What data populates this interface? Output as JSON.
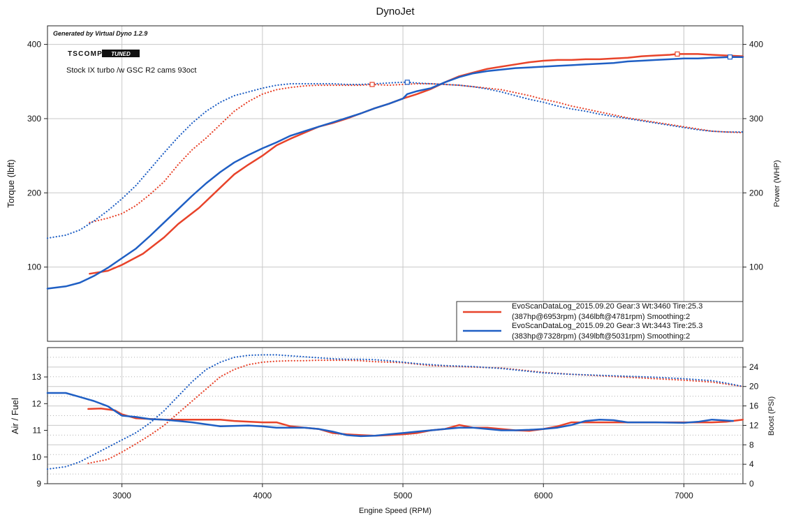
{
  "colors": {
    "red": "#e8432a",
    "blue": "#1f5fc4",
    "grid": "#c8c8c8",
    "minor_grid": "#b0b0b0"
  },
  "chart_data": {
    "title": "DynoJet",
    "generated_by": "Generated by Virtual Dyno 1.2.9",
    "logo": {
      "word": "TSCOMP",
      "badge": "TUNED"
    },
    "annotation": "Stock IX turbo /w GSC R2 cams 93oct",
    "xlabel": "Engine Speed (RPM)",
    "xlim": [
      2470,
      7420
    ],
    "xticks": [
      3000,
      4000,
      5000,
      6000,
      7000
    ],
    "top": {
      "type": "line",
      "ylabel_left": "Torque (lbft)",
      "ylabel_right": "Power (WHP)",
      "ylim": [
        0,
        425
      ],
      "yticks": [
        100,
        200,
        300,
        400
      ],
      "series": [
        {
          "name": "Power",
          "run": "red",
          "style": "solid",
          "x": [
            2770,
            2900,
            3000,
            3150,
            3300,
            3400,
            3550,
            3700,
            3800,
            3900,
            4000,
            4100,
            4200,
            4300,
            4400,
            4500,
            4600,
            4700,
            4800,
            4900,
            5000,
            5100,
            5200,
            5300,
            5400,
            5500,
            5600,
            5700,
            5800,
            5900,
            6000,
            6100,
            6200,
            6300,
            6400,
            6500,
            6600,
            6700,
            6800,
            6900,
            6953,
            7000,
            7100,
            7200,
            7300,
            7420
          ],
          "y": [
            91,
            95,
            103,
            118,
            140,
            158,
            180,
            207,
            225,
            238,
            250,
            264,
            273,
            281,
            289,
            294,
            300,
            307,
            314,
            320,
            327,
            333,
            340,
            349,
            357,
            362,
            367,
            370,
            373,
            376,
            378,
            379,
            379,
            380,
            380,
            381,
            382,
            384,
            385,
            386,
            387,
            387,
            387,
            386,
            385,
            384
          ]
        },
        {
          "name": "Torque",
          "run": "red",
          "style": "dotted",
          "x": [
            2770,
            2900,
            3000,
            3100,
            3200,
            3300,
            3400,
            3500,
            3600,
            3700,
            3800,
            3900,
            4000,
            4100,
            4200,
            4300,
            4400,
            4500,
            4600,
            4700,
            4781,
            4900,
            5000,
            5100,
            5200,
            5300,
            5400,
            5500,
            5600,
            5700,
            5800,
            5900,
            6000,
            6100,
            6200,
            6300,
            6400,
            6500,
            6600,
            6700,
            6800,
            6900,
            7000,
            7100,
            7200,
            7300,
            7420
          ],
          "y": [
            160,
            166,
            172,
            183,
            198,
            215,
            238,
            258,
            274,
            292,
            310,
            323,
            333,
            339,
            342,
            344,
            345,
            345,
            345,
            345,
            346,
            345,
            346,
            347,
            347,
            346,
            345,
            343,
            341,
            339,
            335,
            331,
            326,
            322,
            317,
            313,
            309,
            305,
            301,
            298,
            295,
            292,
            289,
            286,
            283,
            282,
            281
          ]
        },
        {
          "name": "Power",
          "run": "blue",
          "style": "solid",
          "x": [
            2470,
            2600,
            2700,
            2800,
            2900,
            3000,
            3100,
            3200,
            3300,
            3400,
            3500,
            3600,
            3700,
            3800,
            3900,
            4000,
            4100,
            4200,
            4300,
            4400,
            4500,
            4600,
            4700,
            4800,
            4900,
            5000,
            5031,
            5100,
            5200,
            5300,
            5400,
            5500,
            5600,
            5700,
            5800,
            5900,
            6000,
            6100,
            6200,
            6300,
            6400,
            6500,
            6600,
            6700,
            6800,
            6900,
            7000,
            7100,
            7200,
            7328,
            7420
          ],
          "y": [
            71,
            74,
            79,
            88,
            99,
            112,
            125,
            142,
            160,
            178,
            196,
            213,
            228,
            241,
            251,
            260,
            268,
            277,
            283,
            289,
            295,
            301,
            307,
            314,
            320,
            327,
            333,
            337,
            341,
            349,
            356,
            361,
            364,
            366,
            368,
            369,
            370,
            371,
            372,
            373,
            374,
            375,
            377,
            378,
            379,
            380,
            381,
            381,
            382,
            383,
            383
          ]
        },
        {
          "name": "Torque",
          "run": "blue",
          "style": "dotted",
          "x": [
            2470,
            2600,
            2700,
            2800,
            2900,
            3000,
            3100,
            3200,
            3300,
            3400,
            3500,
            3600,
            3700,
            3800,
            3900,
            4000,
            4100,
            4200,
            4300,
            4400,
            4500,
            4600,
            4700,
            4800,
            4900,
            5000,
            5031,
            5100,
            5200,
            5300,
            5400,
            5500,
            5600,
            5700,
            5800,
            5900,
            6000,
            6100,
            6200,
            6300,
            6400,
            6500,
            6600,
            6700,
            6800,
            6900,
            7000,
            7100,
            7200,
            7300,
            7420
          ],
          "y": [
            139,
            143,
            150,
            162,
            176,
            192,
            210,
            232,
            254,
            275,
            294,
            310,
            322,
            331,
            336,
            341,
            345,
            347,
            347,
            347,
            347,
            346,
            346,
            347,
            348,
            349,
            349,
            348,
            347,
            346,
            345,
            343,
            340,
            336,
            331,
            326,
            322,
            317,
            313,
            310,
            306,
            303,
            300,
            297,
            294,
            291,
            288,
            285,
            283,
            282,
            282
          ]
        }
      ],
      "markers": [
        {
          "run": "red",
          "x": 6953,
          "y": 387
        },
        {
          "run": "red",
          "x": 4781,
          "y": 346
        },
        {
          "run": "blue",
          "x": 7328,
          "y": 383
        },
        {
          "run": "blue",
          "x": 5031,
          "y": 349
        }
      ],
      "legend": {
        "position": "bottom-right",
        "entries": [
          {
            "run": "red",
            "line1": "EvoScanDataLog_2015.09.20 Gear:3 Wt:3460 Tire:25.3",
            "line2": "(387hp@6953rpm) (346lbft@4781rpm) Smoothing:2"
          },
          {
            "run": "blue",
            "line1": "EvoScanDataLog_2015.09.20 Gear:3 Wt:3443 Tire:25.3",
            "line2": "(383hp@7328rpm) (349lbft@5031rpm) Smoothing:2"
          }
        ]
      }
    },
    "bottom": {
      "type": "line",
      "ylabel_left": "Air / Fuel",
      "ylabel_right": "Boost (PSI)",
      "ylim_left": [
        9,
        14.1
      ],
      "yticks_left": [
        9,
        10,
        11,
        12,
        13
      ],
      "ylim_right": [
        0,
        28
      ],
      "yticks_right": [
        0,
        4,
        8,
        12,
        16,
        20,
        24
      ],
      "series": [
        {
          "name": "Air/Fuel",
          "run": "red",
          "style": "solid",
          "axis": "left",
          "x": [
            2760,
            2850,
            2950,
            3000,
            3100,
            3300,
            3500,
            3700,
            3800,
            4000,
            4100,
            4200,
            4300,
            4400,
            4500,
            4600,
            4700,
            4800,
            4900,
            5000,
            5100,
            5200,
            5300,
            5400,
            5500,
            5600,
            5700,
            5800,
            5900,
            6000,
            6100,
            6200,
            6400,
            6600,
            6800,
            7000,
            7200,
            7300,
            7420
          ],
          "y": [
            11.8,
            11.82,
            11.75,
            11.6,
            11.45,
            11.4,
            11.4,
            11.4,
            11.35,
            11.3,
            11.3,
            11.15,
            11.1,
            11.05,
            10.9,
            10.85,
            10.82,
            10.8,
            10.82,
            10.85,
            10.9,
            11.0,
            11.05,
            11.2,
            11.1,
            11.1,
            11.05,
            11.0,
            10.98,
            11.05,
            11.15,
            11.3,
            11.3,
            11.3,
            11.3,
            11.3,
            11.3,
            11.32,
            11.4
          ]
        },
        {
          "name": "Boost",
          "run": "red",
          "style": "dotted",
          "axis": "right",
          "x": [
            2760,
            2900,
            3000,
            3100,
            3200,
            3300,
            3400,
            3500,
            3600,
            3700,
            3800,
            3900,
            4000,
            4100,
            4200,
            4300,
            4400,
            4500,
            4600,
            4700,
            4800,
            4900,
            5000,
            5100,
            5200,
            5300,
            5400,
            5500,
            5600,
            5700,
            5800,
            5900,
            6000,
            6200,
            6400,
            6600,
            6800,
            7000,
            7200,
            7300,
            7420
          ],
          "y": [
            4.2,
            5,
            6.5,
            8.2,
            10,
            12,
            14.5,
            17,
            19.5,
            22,
            23.5,
            24.5,
            25,
            25.2,
            25.3,
            25.3,
            25.4,
            25.4,
            25.4,
            25.3,
            25.1,
            25,
            24.9,
            24.6,
            24.3,
            24.2,
            24.1,
            24,
            23.9,
            23.8,
            23.5,
            23.2,
            22.9,
            22.5,
            22.2,
            21.9,
            21.6,
            21.3,
            20.9,
            20.5,
            20
          ]
        },
        {
          "name": "Air/Fuel",
          "run": "blue",
          "style": "solid",
          "axis": "left",
          "x": [
            2470,
            2600,
            2700,
            2800,
            2900,
            3000,
            3100,
            3200,
            3300,
            3500,
            3700,
            3900,
            4000,
            4100,
            4200,
            4300,
            4400,
            4500,
            4600,
            4700,
            4800,
            4900,
            5000,
            5100,
            5200,
            5300,
            5400,
            5500,
            5600,
            5700,
            5800,
            5900,
            6000,
            6100,
            6200,
            6300,
            6400,
            6500,
            6600,
            6800,
            7000,
            7100,
            7200,
            7350
          ],
          "y": [
            12.4,
            12.4,
            12.25,
            12.1,
            11.9,
            11.55,
            11.5,
            11.42,
            11.4,
            11.3,
            11.15,
            11.18,
            11.15,
            11.1,
            11.1,
            11.1,
            11.05,
            10.95,
            10.82,
            10.78,
            10.8,
            10.85,
            10.9,
            10.95,
            11.0,
            11.05,
            11.1,
            11.1,
            11.05,
            11.0,
            11.0,
            11.02,
            11.05,
            11.1,
            11.2,
            11.35,
            11.4,
            11.38,
            11.3,
            11.3,
            11.28,
            11.32,
            11.4,
            11.35
          ]
        },
        {
          "name": "Boost",
          "run": "blue",
          "style": "dotted",
          "axis": "right",
          "x": [
            2470,
            2600,
            2700,
            2800,
            2900,
            3000,
            3100,
            3200,
            3300,
            3400,
            3500,
            3600,
            3700,
            3800,
            3900,
            4000,
            4100,
            4200,
            4300,
            4400,
            4500,
            4600,
            4700,
            4800,
            4900,
            5000,
            5100,
            5200,
            5300,
            5400,
            5500,
            5600,
            5700,
            5800,
            5900,
            6000,
            6200,
            6400,
            6600,
            6800,
            7000,
            7200,
            7300,
            7420
          ],
          "y": [
            3,
            3.5,
            4.5,
            6,
            7.5,
            9,
            10.5,
            12.5,
            15,
            18,
            21,
            23.5,
            25,
            26,
            26.4,
            26.5,
            26.5,
            26.3,
            26.1,
            25.9,
            25.7,
            25.6,
            25.6,
            25.5,
            25.3,
            25,
            24.7,
            24.5,
            24.3,
            24.2,
            24.1,
            23.9,
            23.7,
            23.4,
            23.1,
            22.8,
            22.5,
            22.3,
            22.1,
            21.9,
            21.6,
            21.2,
            20.7,
            20
          ]
        }
      ]
    }
  }
}
